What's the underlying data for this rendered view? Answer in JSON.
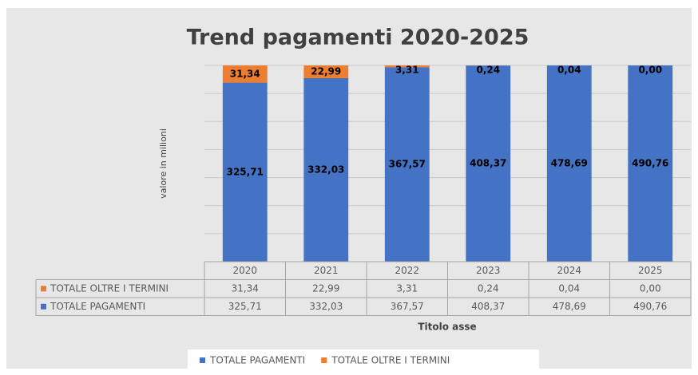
{
  "chart_data": {
    "type": "bar",
    "stacked": "percent",
    "title": "Trend pagamenti 2020-2025",
    "y_label": "valore in milioni",
    "x_label": "Titolo asse",
    "categories": [
      "2020",
      "2021",
      "2022",
      "2023",
      "2024",
      "2025"
    ],
    "series": [
      {
        "name": "TOTALE PAGAMENTI",
        "color": "#4472c4",
        "values": [
          325.71,
          332.03,
          367.57,
          408.37,
          478.69,
          490.76
        ],
        "value_labels": [
          "325,71",
          "332,03",
          "367,57",
          "408,37",
          "478,69",
          "490,76"
        ]
      },
      {
        "name": "TOTALE OLTRE I TERMINI",
        "color": "#ed7d31",
        "values": [
          31.34,
          22.99,
          3.31,
          0.24,
          0.04,
          0.0
        ],
        "value_labels": [
          "31,34",
          "22,99",
          "3,31",
          "0,24",
          "0,04",
          "0,00"
        ]
      }
    ],
    "grid": true,
    "data_table": true,
    "legend": "bottom"
  }
}
